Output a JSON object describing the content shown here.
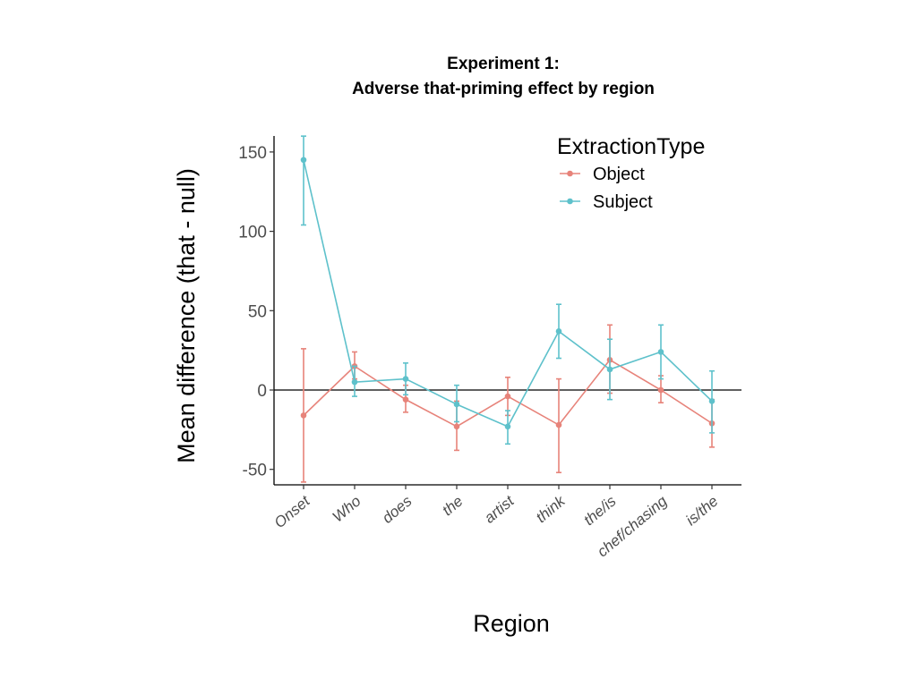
{
  "chart_data": {
    "type": "line",
    "title": "Experiment 1:",
    "subtitle": "Adverse that-priming effect by region",
    "xlabel": "Region",
    "ylabel": "Mean difference (that - null)",
    "ylim": [
      -58,
      160
    ],
    "yticks": [
      -50,
      0,
      50,
      100,
      150
    ],
    "ytick_labels": [
      "-50",
      "0",
      "50",
      "100",
      "150"
    ],
    "categories": [
      "Onset",
      "Who",
      "does",
      "the",
      "artist",
      "think",
      "the/is",
      "chef/chasing",
      "is/the"
    ],
    "reference_line": 0,
    "grid": false,
    "legend": {
      "title": "ExtractionType",
      "position": "top-right"
    },
    "series": [
      {
        "name": "Object",
        "color": "#e7837a",
        "values": [
          -16,
          15,
          -6,
          -23,
          -4,
          -22,
          19,
          0,
          -21
        ],
        "lower": [
          -58,
          7,
          -14,
          -38,
          -16,
          -52,
          -2,
          -8,
          -36
        ],
        "upper": [
          26,
          24,
          3,
          -7,
          8,
          7,
          41,
          9,
          -6
        ]
      },
      {
        "name": "Subject",
        "color": "#5ec1cb",
        "values": [
          145,
          5,
          7,
          -9,
          -23,
          37,
          13,
          24,
          -7
        ],
        "lower": [
          104,
          -4,
          -3,
          -20,
          -34,
          20,
          -6,
          7,
          -27
        ],
        "upper": [
          160,
          15,
          17,
          3,
          -13,
          54,
          32,
          41,
          12
        ]
      }
    ]
  }
}
